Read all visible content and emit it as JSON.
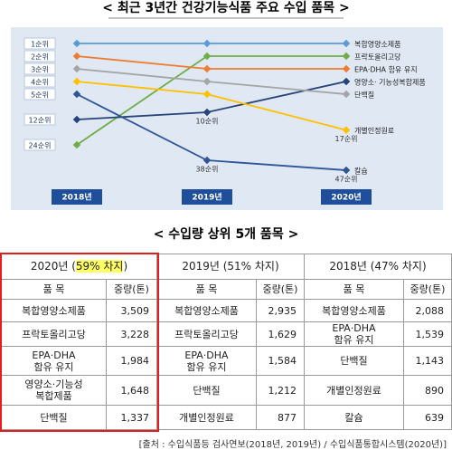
{
  "chart_data": {
    "type": "line",
    "title": "< 최근 3년간 건강기능식품 주요 수입 품목 >",
    "categories": [
      "2018년",
      "2019년",
      "2020년"
    ],
    "ylim": [
      1,
      47
    ],
    "reverse_y": true,
    "yticks": [
      {
        "value": 1,
        "label": "1순위"
      },
      {
        "value": 2,
        "label": "2순위"
      },
      {
        "value": 3,
        "label": "3순위"
      },
      {
        "value": 4,
        "label": "4순위"
      },
      {
        "value": 5,
        "label": "5순위"
      },
      {
        "value": 12,
        "label": "12순위"
      },
      {
        "value": 24,
        "label": "24순위"
      }
    ],
    "series": [
      {
        "name": "복합영양소제품",
        "color": "#5b9bd5",
        "values": [
          1,
          1,
          1
        ]
      },
      {
        "name": "프락토올리고당",
        "color": "#70ad47",
        "values": [
          24,
          2,
          2
        ]
      },
      {
        "name": "EPA·DHA 함유 유지",
        "color": "#ed7d31",
        "values": [
          2,
          3,
          3
        ]
      },
      {
        "name": "영양소· 기능성복합제품",
        "color": "#264478",
        "values": [
          12,
          10,
          4
        ],
        "value_labels": [
          null,
          "10순위",
          null
        ]
      },
      {
        "name": "단백질",
        "color": "#a5a5a5",
        "values": [
          3,
          4,
          5
        ]
      },
      {
        "name": "개별인정원료",
        "color": "#ffc000",
        "values": [
          4,
          5,
          17
        ],
        "value_labels": [
          null,
          null,
          "17순위"
        ]
      },
      {
        "name": "칼슘",
        "color": "#2f5597",
        "values": [
          5,
          38,
          47
        ],
        "value_labels": [
          null,
          "38순위",
          "47순위"
        ]
      }
    ]
  },
  "table": {
    "title": "< 수입량 상위 5개 품목 >",
    "columns": [
      "품 목",
      "중량(톤)"
    ],
    "groups": [
      {
        "year": "2020년 (",
        "share": "59% 차지",
        "end": ")",
        "highlight": true,
        "rows": [
          [
            "복합영양소제품",
            "3,509"
          ],
          [
            "프락토올리고당",
            "3,228"
          ],
          [
            "EPA·DHA\n함유 유지",
            "1,984"
          ],
          [
            "영양소·기능성\n복합제품",
            "1,648"
          ],
          [
            "단백질",
            "1,337"
          ]
        ]
      },
      {
        "year": "2019년 (",
        "share": "51% 차지",
        "end": ")",
        "highlight": false,
        "rows": [
          [
            "복합영양소제품",
            "2,935"
          ],
          [
            "프락토올리고당",
            "1,629"
          ],
          [
            "EPA·DHA\n함유 유지",
            "1,584"
          ],
          [
            "단백질",
            "1,212"
          ],
          [
            "개별인정원료",
            "877"
          ]
        ]
      },
      {
        "year": "2018년 (",
        "share": "47% 차지",
        "end": ")",
        "highlight": false,
        "rows": [
          [
            "복합영양소제품",
            "2,088"
          ],
          [
            "EPA·DHA\n함유 유지",
            "1,539"
          ],
          [
            "단백질",
            "1,143"
          ],
          [
            "개별인정원료",
            "890"
          ],
          [
            "칼슘",
            "639"
          ]
        ]
      }
    ]
  },
  "source": "[출처 : 수입식품등 검사연보(2018년, 2019년) / 수입식품통합시스템(2020년)]"
}
